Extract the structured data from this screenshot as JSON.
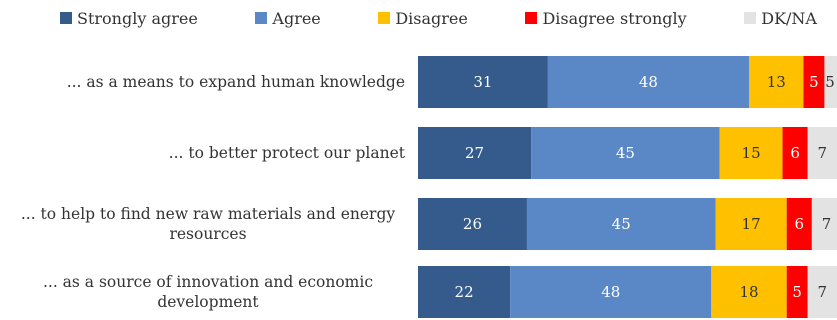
{
  "chart_data": {
    "type": "bar",
    "orientation": "horizontal",
    "stacked": true,
    "title": "",
    "xlabel": "",
    "ylabel": "",
    "legend_position": "top",
    "categories": [
      [
        "... as a means to expand human knowledge"
      ],
      [
        "... to better protect our planet"
      ],
      [
        "... to help to find new raw materials and energy",
        "resources"
      ],
      [
        "... as a source of innovation and economic",
        "development"
      ]
    ],
    "series": [
      {
        "name": "Strongly agree",
        "color": "#345b8c",
        "label_color": "#ffffff",
        "values": [
          31,
          27,
          26,
          22
        ]
      },
      {
        "name": "Agree",
        "color": "#5a87c6",
        "label_color": "#ffffff",
        "values": [
          48,
          45,
          45,
          48
        ]
      },
      {
        "name": "Disagree",
        "color": "#ffc000",
        "label_color": "#333333",
        "values": [
          13,
          15,
          17,
          18
        ]
      },
      {
        "name": "Disagree strongly",
        "color": "#ff0000",
        "label_color": "#ffffff",
        "values": [
          5,
          6,
          6,
          5
        ]
      },
      {
        "name": "DK/NA",
        "color": "#e3e3e3",
        "label_color": "#333333",
        "values": [
          5,
          7,
          7,
          7
        ]
      }
    ],
    "xlim": [
      0,
      100
    ]
  }
}
